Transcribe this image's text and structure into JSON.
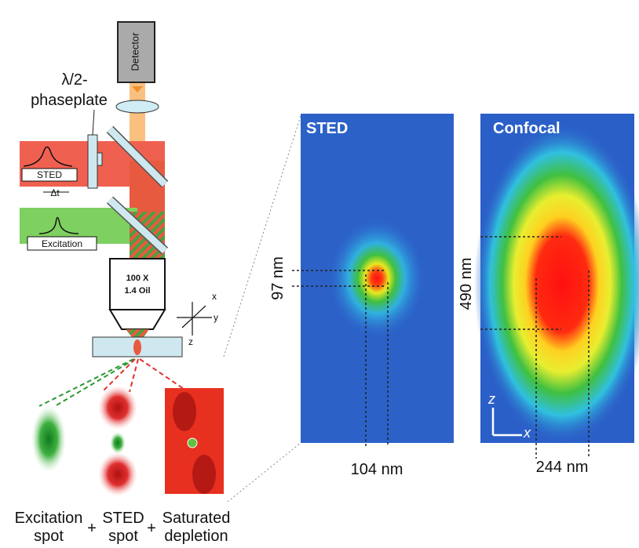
{
  "setup": {
    "detector": "Detector",
    "phaseplate": [
      "λ/2-",
      "phaseplate"
    ],
    "sted_pulse": "STED",
    "delay": "Δt",
    "excitation_pulse": "Excitation",
    "objective": [
      "100 X",
      "1.4 Oil"
    ],
    "axes": [
      "x",
      "y",
      "z"
    ]
  },
  "spots": [
    {
      "label": [
        "Excitation",
        "spot"
      ]
    },
    {
      "label": [
        "STED",
        "spot"
      ]
    },
    {
      "label": [
        "Saturated",
        "depletion"
      ]
    }
  ],
  "plus": "+",
  "panels": [
    {
      "title": "STED",
      "height": "97 nm",
      "width": "104 nm"
    },
    {
      "title": "Confocal",
      "height": "490 nm",
      "width": "244 nm",
      "axes": [
        "z",
        "x"
      ]
    }
  ]
}
